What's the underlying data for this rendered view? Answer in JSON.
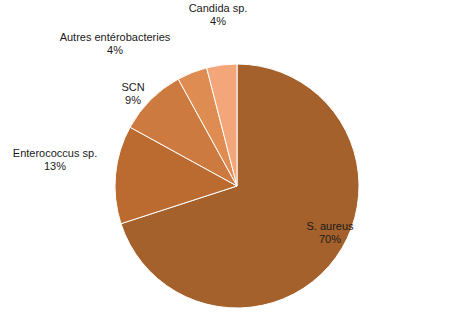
{
  "chart_data": {
    "type": "pie",
    "categories": [
      "S. aureus",
      "Enterococcus sp.",
      "SCN",
      "Autres entérobacteries",
      "Candida sp."
    ],
    "values": [
      70,
      13,
      9,
      4,
      4
    ],
    "value_labels": [
      "70%",
      "13%",
      "9%",
      "4%",
      "4%"
    ],
    "colors": [
      "#a4612c",
      "#bb6b30",
      "#cc7a3f",
      "#df8c52",
      "#f3a679"
    ],
    "data_labels": true
  }
}
